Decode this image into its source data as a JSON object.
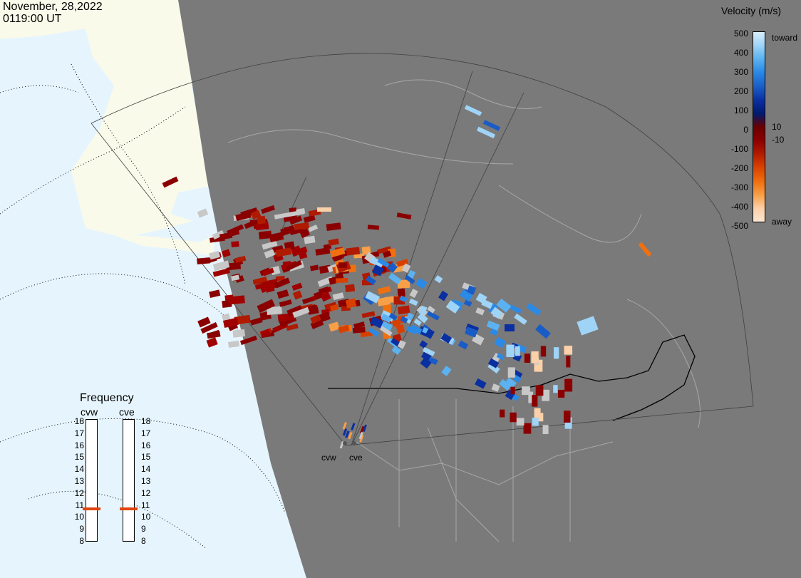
{
  "header": {
    "date": "November, 28,2022",
    "time": "0119:00 UT"
  },
  "legend": {
    "title": "Velocity (m/s)",
    "ticks": [
      "500",
      "400",
      "300",
      "200",
      "100",
      "10",
      "0",
      "-10",
      "-100",
      "-200",
      "-300",
      "-400",
      "-500"
    ],
    "toward_label": "toward",
    "away_label": "away",
    "colors": [
      "#d8eefc",
      "#9fd4f7",
      "#5cb2f0",
      "#2b8ae6",
      "#1a5cc6",
      "#0a2fa0",
      "#001a70",
      "#6a0000",
      "#8a0000",
      "#b01a00",
      "#d84000",
      "#f07010",
      "#f8a048",
      "#fcd0a8",
      "#fde6d0"
    ]
  },
  "frequency": {
    "title": "Frequency",
    "radars": [
      "cvw",
      "cve"
    ],
    "scale": [
      "18",
      "17",
      "16",
      "15",
      "14",
      "13",
      "12",
      "11",
      "10",
      "9",
      "8"
    ],
    "cvw_mhz": 10.7,
    "cve_mhz": 10.7,
    "marker_color": "#e04510"
  },
  "map": {
    "ocean_color": "#e6f5fd",
    "land_color": "#fafaea",
    "night_color": "#7a7a7a",
    "radar_sites": [
      "cvw",
      "cve"
    ]
  }
}
